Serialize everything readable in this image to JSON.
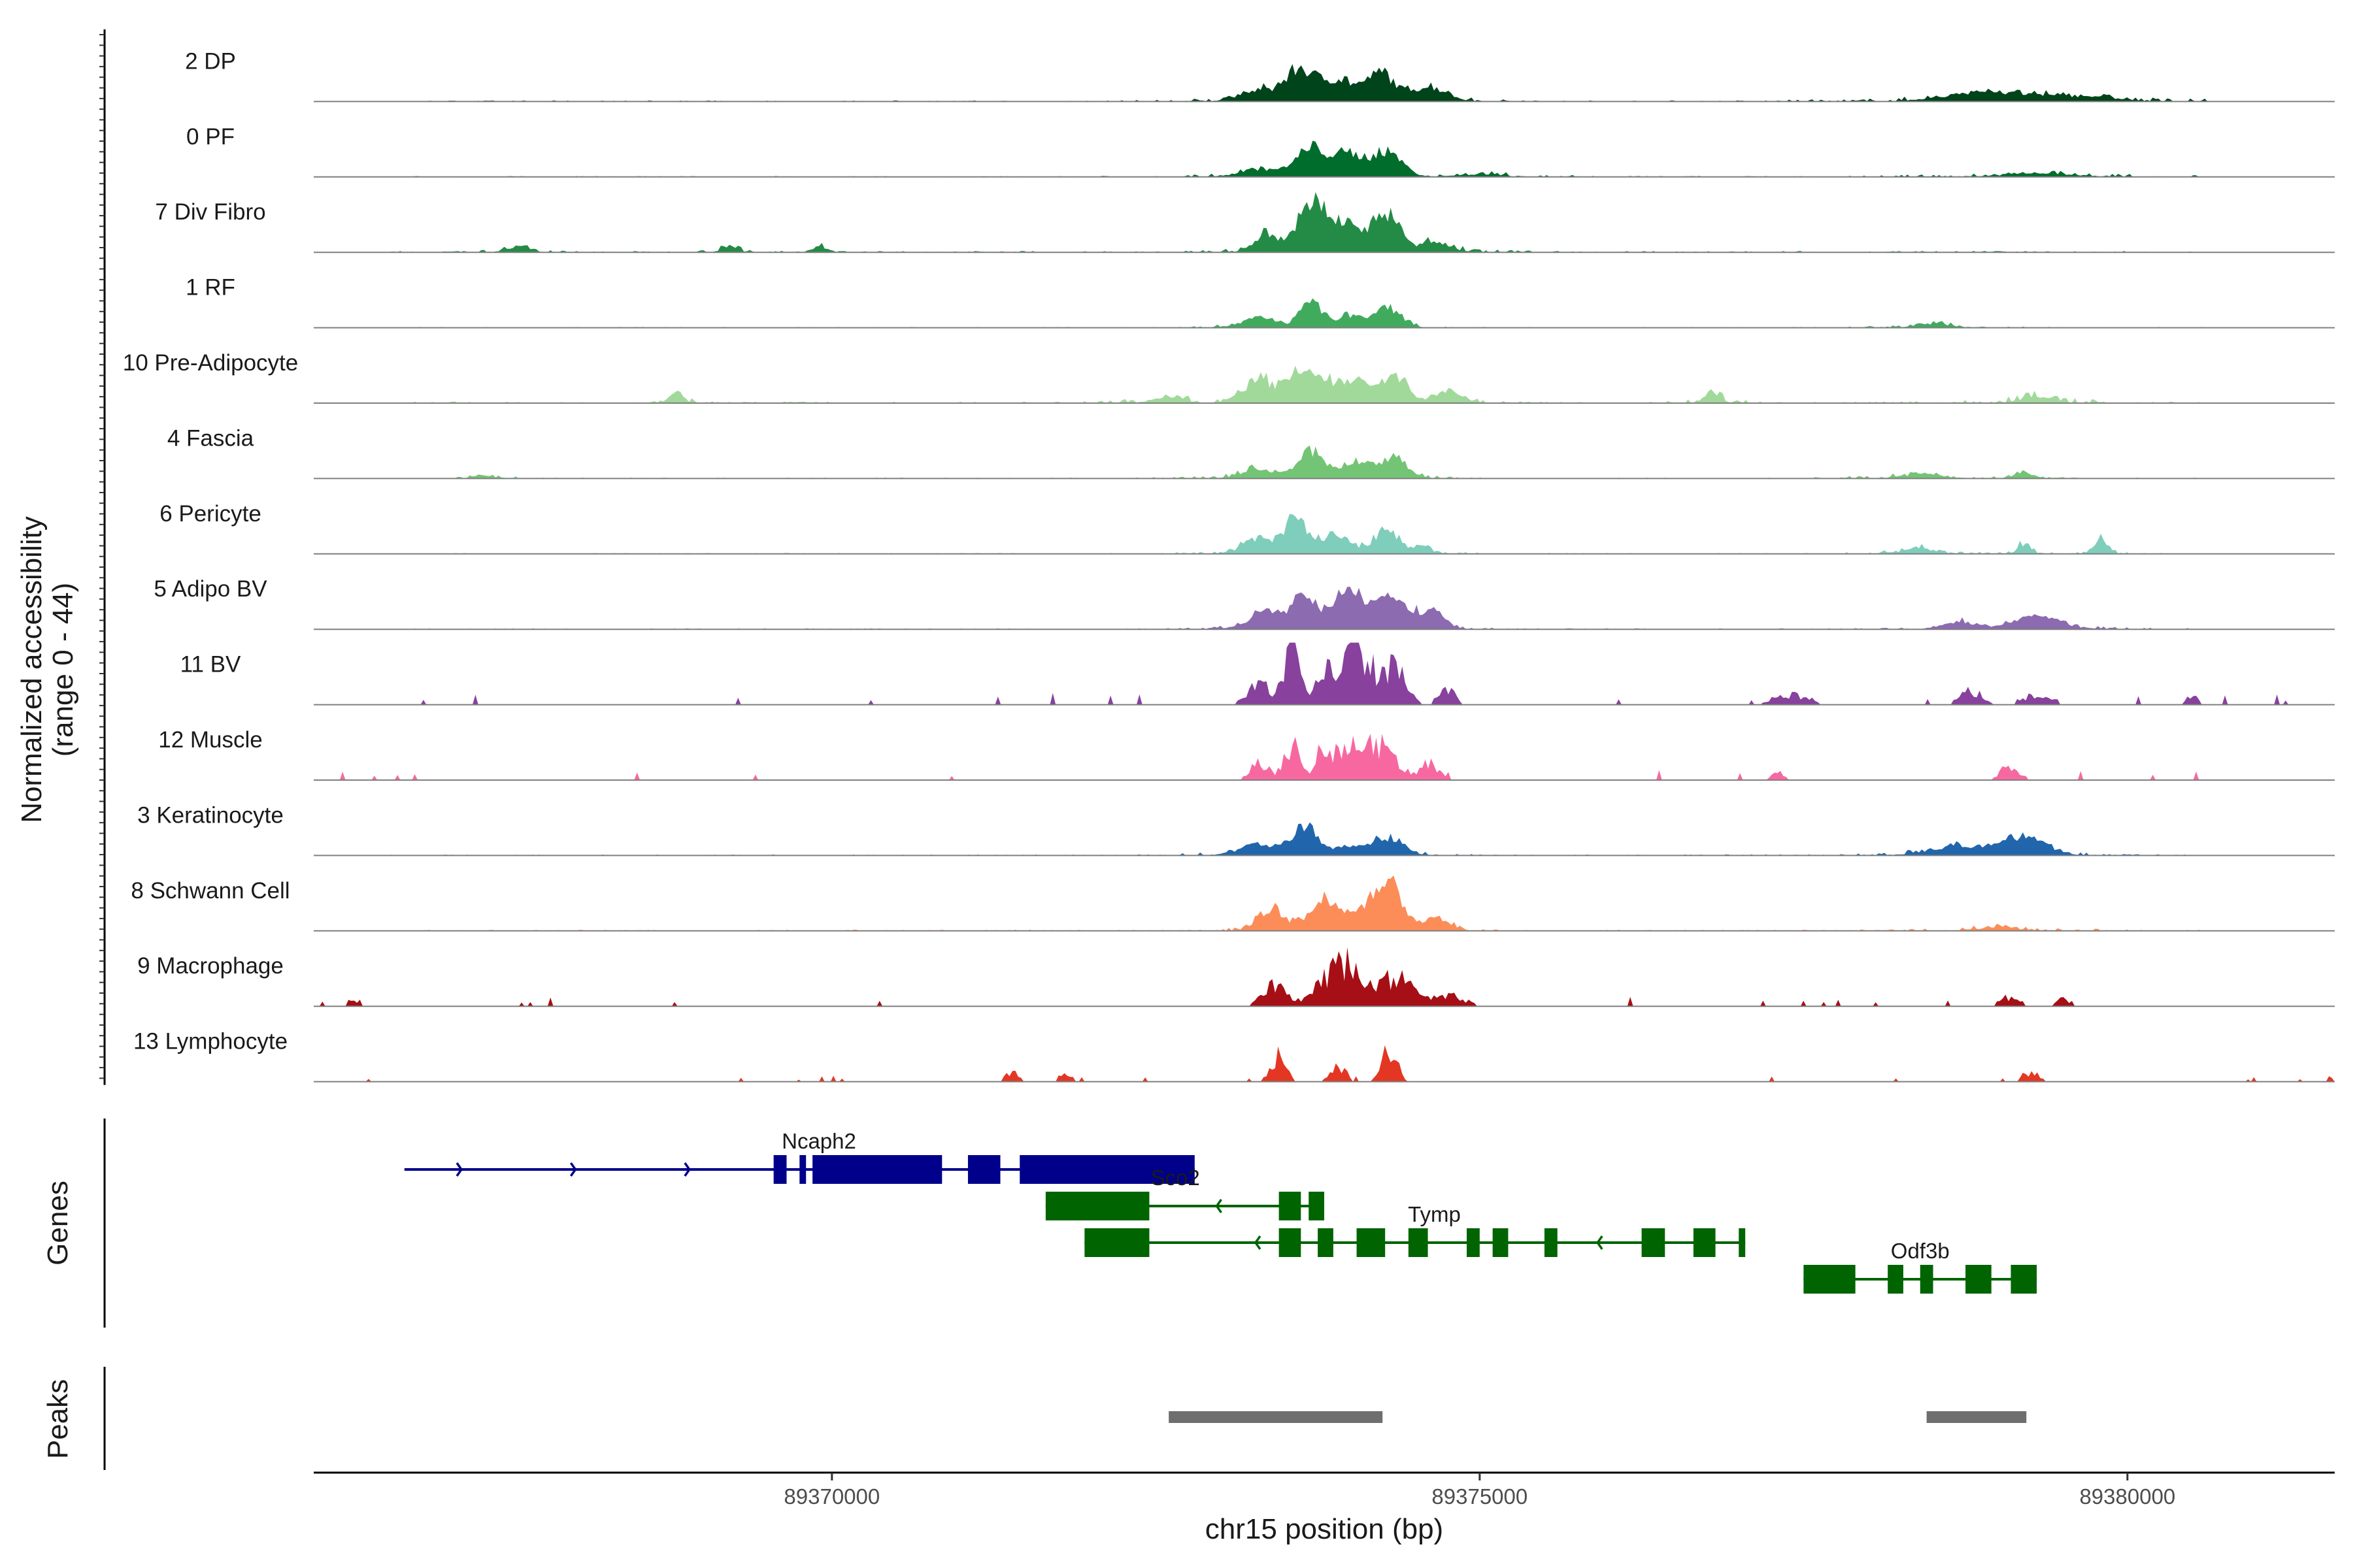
{
  "chart_data": {
    "type": "area",
    "title": "",
    "xlabel": "chr15 position (bp)",
    "ylabel_line1": "Normalized accessibility",
    "ylabel_line2": "(range 0 - 44)",
    "y_range": [
      0,
      44
    ],
    "xlim": [
      89366000,
      89381600
    ],
    "x_ticks": [
      89370000,
      89375000,
      89380000
    ],
    "x_tick_labels": [
      "89370000",
      "89375000",
      "89380000"
    ],
    "panel_labels": {
      "genes": "Genes",
      "peaks": "Peaks"
    },
    "tracks": [
      {
        "name": "2 DP",
        "color": "#00441b",
        "sparse": false,
        "noise": 0.06,
        "peaks": [
          [
            89373300,
            150,
            0.16
          ],
          [
            89373600,
            100,
            0.42
          ],
          [
            89373900,
            160,
            0.34
          ],
          [
            89374250,
            90,
            0.4
          ],
          [
            89374600,
            140,
            0.22
          ],
          [
            89378900,
            280,
            0.14
          ],
          [
            89379600,
            260,
            0.08
          ]
        ]
      },
      {
        "name": "0 PF",
        "color": "#006d2c",
        "sparse": false,
        "noise": 0.05,
        "peaks": [
          [
            89373300,
            150,
            0.12
          ],
          [
            89373700,
            110,
            0.4
          ],
          [
            89374000,
            140,
            0.32
          ],
          [
            89374300,
            110,
            0.34
          ],
          [
            89375000,
            150,
            0.04
          ],
          [
            89379300,
            250,
            0.05
          ]
        ]
      },
      {
        "name": "7 Div Fibro",
        "color": "#238b45",
        "sparse": false,
        "noise": 0.07,
        "peaks": [
          [
            89373350,
            90,
            0.24
          ],
          [
            89373700,
            110,
            0.72
          ],
          [
            89374000,
            150,
            0.42
          ],
          [
            89374300,
            90,
            0.52
          ],
          [
            89374650,
            120,
            0.14
          ],
          [
            89367600,
            60,
            0.12
          ],
          [
            89369200,
            50,
            0.1
          ],
          [
            89369900,
            50,
            0.08
          ]
        ]
      },
      {
        "name": "1 RF",
        "color": "#41ab5d",
        "sparse": false,
        "noise": 0.04,
        "peaks": [
          [
            89373300,
            130,
            0.16
          ],
          [
            89373700,
            80,
            0.42
          ],
          [
            89374000,
            100,
            0.18
          ],
          [
            89374300,
            100,
            0.3
          ],
          [
            89378500,
            120,
            0.06
          ]
        ]
      },
      {
        "name": "10 Pre-Adipocyte",
        "color": "#a1d99b",
        "sparse": false,
        "noise": 0.08,
        "peaks": [
          [
            89372600,
            100,
            0.1
          ],
          [
            89373300,
            130,
            0.34
          ],
          [
            89373650,
            110,
            0.5
          ],
          [
            89374000,
            160,
            0.36
          ],
          [
            89374350,
            100,
            0.38
          ],
          [
            89374750,
            100,
            0.16
          ],
          [
            89368800,
            50,
            0.16
          ],
          [
            89376800,
            60,
            0.14
          ],
          [
            89379300,
            120,
            0.1
          ]
        ]
      },
      {
        "name": "4 Fascia",
        "color": "#74c476",
        "sparse": false,
        "noise": 0.05,
        "peaks": [
          [
            89373300,
            130,
            0.14
          ],
          [
            89373700,
            100,
            0.4
          ],
          [
            89374050,
            130,
            0.24
          ],
          [
            89374350,
            100,
            0.3
          ],
          [
            89367300,
            60,
            0.05
          ],
          [
            89378400,
            150,
            0.06
          ],
          [
            89379200,
            60,
            0.1
          ]
        ]
      },
      {
        "name": "6 Pericyte",
        "color": "#7fcdbb",
        "sparse": false,
        "noise": 0.05,
        "peaks": [
          [
            89373300,
            120,
            0.24
          ],
          [
            89373580,
            80,
            0.52
          ],
          [
            89373880,
            120,
            0.3
          ],
          [
            89374280,
            90,
            0.38
          ],
          [
            89374550,
            70,
            0.12
          ],
          [
            89378400,
            120,
            0.08
          ],
          [
            89379200,
            50,
            0.14
          ],
          [
            89379800,
            50,
            0.22
          ]
        ]
      },
      {
        "name": "5 Adipo BV",
        "color": "#8c6bb1",
        "sparse": false,
        "noise": 0.05,
        "peaks": [
          [
            89373350,
            130,
            0.26
          ],
          [
            89373650,
            90,
            0.56
          ],
          [
            89374000,
            120,
            0.64
          ],
          [
            89374350,
            120,
            0.5
          ],
          [
            89374650,
            90,
            0.22
          ],
          [
            89378700,
            120,
            0.12
          ],
          [
            89379300,
            180,
            0.2
          ]
        ]
      },
      {
        "name": "11 BV",
        "color": "#88419d",
        "sparse": true,
        "noise": 0.12,
        "peaks": [
          [
            89373300,
            90,
            0.3
          ],
          [
            89373550,
            60,
            0.82
          ],
          [
            89373800,
            60,
            0.46
          ],
          [
            89374050,
            120,
            0.84
          ],
          [
            89374350,
            90,
            0.5
          ],
          [
            89374750,
            70,
            0.2
          ],
          [
            89377400,
            150,
            0.14
          ],
          [
            89378800,
            90,
            0.2
          ],
          [
            89379300,
            120,
            0.14
          ],
          [
            89380500,
            50,
            0.12
          ]
        ]
      },
      {
        "name": "12 Muscle",
        "color": "#f768a1",
        "sparse": true,
        "noise": 0.12,
        "peaks": [
          [
            89373300,
            70,
            0.3
          ],
          [
            89373550,
            60,
            0.54
          ],
          [
            89373800,
            60,
            0.5
          ],
          [
            89374050,
            120,
            0.62
          ],
          [
            89374300,
            80,
            0.46
          ],
          [
            89374600,
            80,
            0.24
          ],
          [
            89377300,
            50,
            0.14
          ],
          [
            89379100,
            80,
            0.2
          ]
        ]
      },
      {
        "name": "3 Keratinocyte",
        "color": "#2166ac",
        "sparse": false,
        "noise": 0.05,
        "peaks": [
          [
            89373300,
            150,
            0.16
          ],
          [
            89373650,
            90,
            0.46
          ],
          [
            89374000,
            130,
            0.14
          ],
          [
            89374300,
            110,
            0.26
          ],
          [
            89378700,
            220,
            0.14
          ],
          [
            89379200,
            160,
            0.28
          ]
        ]
      },
      {
        "name": "8 Schwann Cell",
        "color": "#fc8d59",
        "sparse": false,
        "noise": 0.06,
        "peaks": [
          [
            89373400,
            100,
            0.34
          ],
          [
            89373800,
            110,
            0.5
          ],
          [
            89374100,
            100,
            0.3
          ],
          [
            89374300,
            90,
            0.72
          ],
          [
            89374650,
            100,
            0.22
          ],
          [
            89379000,
            150,
            0.05
          ]
        ]
      },
      {
        "name": "9 Macrophage",
        "color": "#a50f15",
        "sparse": true,
        "noise": 0.1,
        "peaks": [
          [
            89373400,
            90,
            0.34
          ],
          [
            89373800,
            110,
            0.3
          ],
          [
            89374000,
            110,
            0.56
          ],
          [
            89374350,
            110,
            0.46
          ],
          [
            89374750,
            140,
            0.16
          ],
          [
            89379100,
            80,
            0.14
          ],
          [
            89379500,
            70,
            0.1
          ],
          [
            89366300,
            40,
            0.1
          ]
        ]
      },
      {
        "name": "13 Lymphocyte",
        "color": "#e33724",
        "sparse": true,
        "noise": 0.06,
        "peaks": [
          [
            89373450,
            60,
            0.4
          ],
          [
            89373900,
            70,
            0.22
          ],
          [
            89374300,
            60,
            0.5
          ],
          [
            89371400,
            50,
            0.16
          ],
          [
            89371800,
            50,
            0.14
          ],
          [
            89379250,
            70,
            0.14
          ]
        ]
      }
    ],
    "genes": [
      {
        "name": "Ncaph2",
        "strand": "+",
        "color": "#00008b",
        "row": 2,
        "start": 89366700,
        "end": 89372800,
        "exons": [
          [
            89369550,
            89369650
          ],
          [
            89369750,
            89369800
          ],
          [
            89369850,
            89370850
          ],
          [
            89371050,
            89371300
          ],
          [
            89371450,
            89372800
          ]
        ],
        "label_x": 89369900
      },
      {
        "name": "Sco2",
        "strand": "-",
        "color": "#006400",
        "row": 1,
        "start": 89371650,
        "end": 89373800,
        "exons": [
          [
            89371650,
            89372450
          ],
          [
            89373450,
            89373620
          ],
          [
            89373680,
            89373800
          ]
        ],
        "label_x": 89372650
      },
      {
        "name": "Tymp",
        "strand": "-",
        "color": "#006400",
        "row": 0,
        "start": 89371950,
        "end": 89377050,
        "exons": [
          [
            89371950,
            89372450
          ],
          [
            89373450,
            89373620
          ],
          [
            89373750,
            89373870
          ],
          [
            89374050,
            89374270
          ],
          [
            89374450,
            89374600
          ],
          [
            89374900,
            89375000
          ],
          [
            89375100,
            89375220
          ],
          [
            89375500,
            89375600
          ],
          [
            89376250,
            89376430
          ],
          [
            89376650,
            89376820
          ],
          [
            89377000,
            89377050
          ]
        ],
        "label_x": 89374650
      },
      {
        "name": "Odf3b",
        "strand": "-",
        "color": "#006400",
        "row": -1,
        "start": 89377500,
        "end": 89379300,
        "exons": [
          [
            89377500,
            89377900
          ],
          [
            89378150,
            89378270
          ],
          [
            89378400,
            89378500
          ],
          [
            89378750,
            89378950
          ],
          [
            89379100,
            89379300
          ]
        ],
        "label_x": 89378400
      }
    ],
    "peaks": [
      [
        89372600,
        89374250
      ],
      [
        89378450,
        89379220
      ]
    ]
  }
}
